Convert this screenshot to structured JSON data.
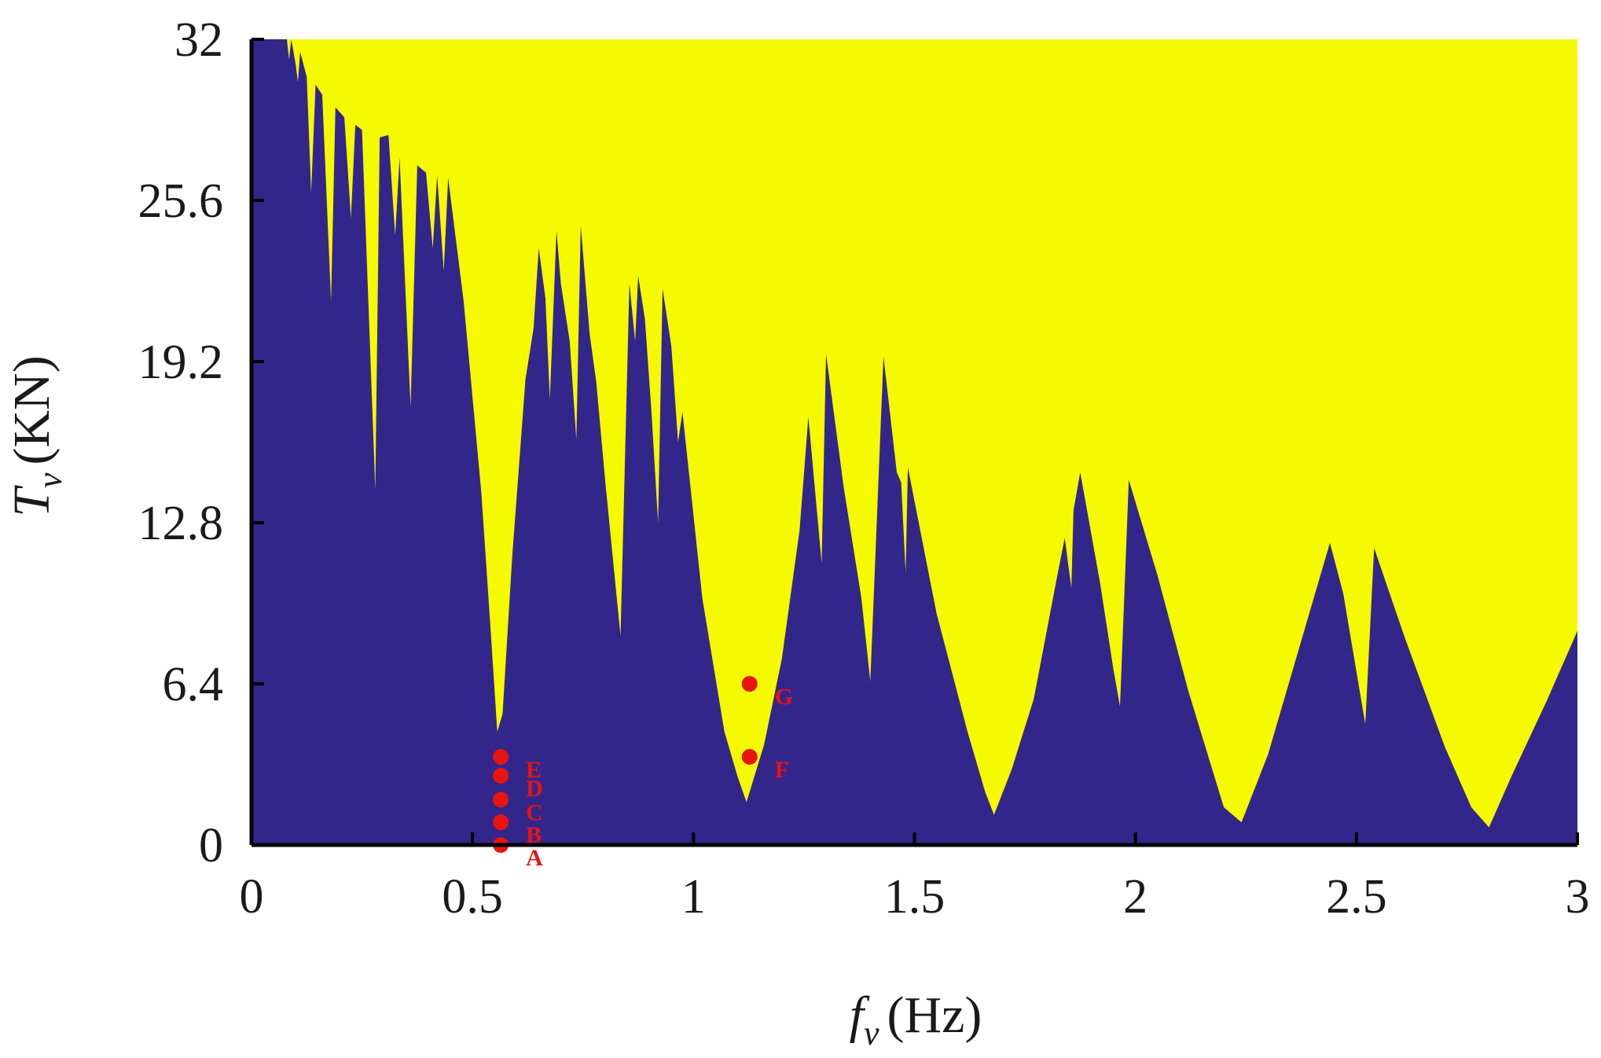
{
  "chart_data": {
    "type": "area",
    "xlabel": {
      "main": "f",
      "sub": "v",
      "unit": "(Hz)"
    },
    "ylabel": {
      "main": "T",
      "sub": "v",
      "unit": "(KN)"
    },
    "xlim": [
      0,
      3
    ],
    "ylim": [
      0,
      32
    ],
    "x_ticks": [
      "0",
      "0.5",
      "1",
      "1.5",
      "2",
      "2.5",
      "3"
    ],
    "y_ticks": [
      "0",
      "6.4",
      "12.8",
      "19.2",
      "25.6",
      "32"
    ],
    "grid": false,
    "colors": {
      "lower_region": "#33268a",
      "upper_region": "#f5fa00",
      "points": "#e81410",
      "axes": "#000000"
    },
    "boundary": [
      [
        0.0,
        32.0
      ],
      [
        0.08,
        32.0
      ],
      [
        0.085,
        31.2
      ],
      [
        0.09,
        32.0
      ],
      [
        0.1,
        31.0
      ],
      [
        0.105,
        30.3
      ],
      [
        0.11,
        31.5
      ],
      [
        0.125,
        30.5
      ],
      [
        0.135,
        25.9
      ],
      [
        0.145,
        30.2
      ],
      [
        0.16,
        29.8
      ],
      [
        0.18,
        21.6
      ],
      [
        0.19,
        29.3
      ],
      [
        0.21,
        28.9
      ],
      [
        0.225,
        24.9
      ],
      [
        0.235,
        28.6
      ],
      [
        0.25,
        28.4
      ],
      [
        0.28,
        14.1
      ],
      [
        0.29,
        28.1
      ],
      [
        0.31,
        28.2
      ],
      [
        0.325,
        24.2
      ],
      [
        0.335,
        27.3
      ],
      [
        0.36,
        17.4
      ],
      [
        0.375,
        27.0
      ],
      [
        0.395,
        26.7
      ],
      [
        0.41,
        23.7
      ],
      [
        0.42,
        26.6
      ],
      [
        0.435,
        22.8
      ],
      [
        0.445,
        26.5
      ],
      [
        0.48,
        21.6
      ],
      [
        0.52,
        14.0
      ],
      [
        0.54,
        8.8
      ],
      [
        0.556,
        4.5
      ],
      [
        0.568,
        5.2
      ],
      [
        0.59,
        11.5
      ],
      [
        0.62,
        18.5
      ],
      [
        0.638,
        20.5
      ],
      [
        0.65,
        23.7
      ],
      [
        0.665,
        21.7
      ],
      [
        0.675,
        17.7
      ],
      [
        0.69,
        24.4
      ],
      [
        0.7,
        22.3
      ],
      [
        0.72,
        20.0
      ],
      [
        0.735,
        16.1
      ],
      [
        0.745,
        24.6
      ],
      [
        0.765,
        20.3
      ],
      [
        0.78,
        18.4
      ],
      [
        0.8,
        14.5
      ],
      [
        0.835,
        8.3
      ],
      [
        0.855,
        22.3
      ],
      [
        0.868,
        20.0
      ],
      [
        0.875,
        22.6
      ],
      [
        0.89,
        20.9
      ],
      [
        0.905,
        17.2
      ],
      [
        0.92,
        12.8
      ],
      [
        0.93,
        22.1
      ],
      [
        0.95,
        19.8
      ],
      [
        0.965,
        16.0
      ],
      [
        0.975,
        17.2
      ],
      [
        1.02,
        9.8
      ],
      [
        1.07,
        4.5
      ],
      [
        1.1,
        2.7
      ],
      [
        1.12,
        1.7
      ],
      [
        1.16,
        4.0
      ],
      [
        1.2,
        7.4
      ],
      [
        1.24,
        12.5
      ],
      [
        1.26,
        17.0
      ],
      [
        1.29,
        11.2
      ],
      [
        1.3,
        19.5
      ],
      [
        1.34,
        14.2
      ],
      [
        1.38,
        9.8
      ],
      [
        1.4,
        6.5
      ],
      [
        1.43,
        19.4
      ],
      [
        1.46,
        14.8
      ],
      [
        1.47,
        14.4
      ],
      [
        1.48,
        10.8
      ],
      [
        1.485,
        15.0
      ],
      [
        1.55,
        9.2
      ],
      [
        1.62,
        4.5
      ],
      [
        1.66,
        2.1
      ],
      [
        1.68,
        1.2
      ],
      [
        1.72,
        3.0
      ],
      [
        1.77,
        5.8
      ],
      [
        1.82,
        10.4
      ],
      [
        1.84,
        12.2
      ],
      [
        1.855,
        10.2
      ],
      [
        1.86,
        13.3
      ],
      [
        1.875,
        14.8
      ],
      [
        1.92,
        10.4
      ],
      [
        1.95,
        7.0
      ],
      [
        1.965,
        5.5
      ],
      [
        1.985,
        14.5
      ],
      [
        2.05,
        10.7
      ],
      [
        2.12,
        6.1
      ],
      [
        2.2,
        1.5
      ],
      [
        2.24,
        0.9
      ],
      [
        2.3,
        3.6
      ],
      [
        2.37,
        7.8
      ],
      [
        2.44,
        12.0
      ],
      [
        2.47,
        10.0
      ],
      [
        2.52,
        4.8
      ],
      [
        2.54,
        11.8
      ],
      [
        2.61,
        8.2
      ],
      [
        2.7,
        3.9
      ],
      [
        2.76,
        1.5
      ],
      [
        2.8,
        0.7
      ],
      [
        2.85,
        2.7
      ],
      [
        2.93,
        5.7
      ],
      [
        3.0,
        8.5
      ]
    ],
    "points": [
      {
        "label": "A",
        "x": 0.564,
        "y": 0.0
      },
      {
        "label": "B",
        "x": 0.564,
        "y": 0.9
      },
      {
        "label": "C",
        "x": 0.564,
        "y": 1.8
      },
      {
        "label": "D",
        "x": 0.564,
        "y": 2.75
      },
      {
        "label": "E",
        "x": 0.564,
        "y": 3.5
      },
      {
        "label": "F",
        "x": 1.127,
        "y": 3.5
      },
      {
        "label": "G",
        "x": 1.127,
        "y": 6.4
      }
    ]
  }
}
